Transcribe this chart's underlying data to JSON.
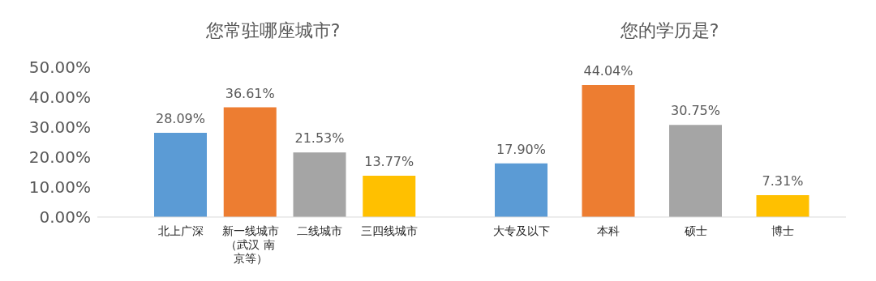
{
  "chart_data": [
    {
      "type": "bar",
      "title": "您常驻哪座城市?",
      "categories": [
        "北上广深",
        "新一线城市（武汉 南京等）",
        "二线城市",
        "三四线城市"
      ],
      "values": [
        28.09,
        36.61,
        21.53,
        13.77
      ],
      "colors": [
        "#5b9bd5",
        "#ed7d31",
        "#a5a5a5",
        "#ffc000"
      ],
      "value_labels": [
        "28.09%",
        "36.61%",
        "21.53%",
        "13.77%"
      ],
      "ylim": [
        0,
        50
      ],
      "yticks": [
        {
          "value": 0,
          "label": "0.00%"
        },
        {
          "value": 10,
          "label": "10.00%"
        },
        {
          "value": 20,
          "label": "20.00%"
        },
        {
          "value": 30,
          "label": "30.00%"
        },
        {
          "value": 40,
          "label": "40.00%"
        },
        {
          "value": 50,
          "label": "50.00%"
        }
      ]
    },
    {
      "type": "bar",
      "title": "您的学历是?",
      "categories": [
        "大专及以下",
        "本科",
        "硕士",
        "博士"
      ],
      "values": [
        17.9,
        44.04,
        30.75,
        7.31
      ],
      "colors": [
        "#5b9bd5",
        "#ed7d31",
        "#a5a5a5",
        "#ffc000"
      ],
      "value_labels": [
        "17.90%",
        "44.04%",
        "30.75%",
        "7.31%"
      ],
      "ylim": [
        0,
        50
      ],
      "tick_labels": "x"
    }
  ]
}
